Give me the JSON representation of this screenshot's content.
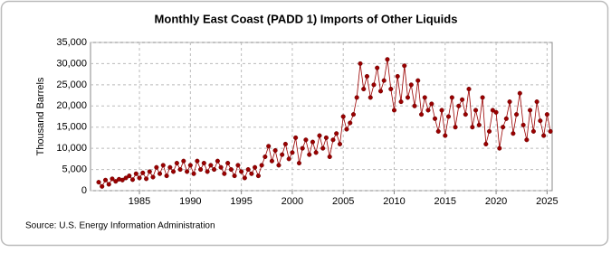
{
  "chart_data": {
    "type": "line",
    "title": "Monthly East Coast (PADD 1) Imports of Other Liquids",
    "y_label": "Thousand Barrels",
    "source": "Source: U.S. Energy Information Administration",
    "series": [
      {
        "name": "East Coast (PADD 1) Imports of Other Liquids",
        "color": "#9a0000",
        "x": [
          1981,
          1981.33,
          1981.67,
          1982,
          1982.33,
          1982.67,
          1983,
          1983.33,
          1983.67,
          1984,
          1984.33,
          1984.67,
          1985,
          1985.33,
          1985.67,
          1986,
          1986.33,
          1986.67,
          1987,
          1987.33,
          1987.67,
          1988,
          1988.33,
          1988.67,
          1989,
          1989.33,
          1989.67,
          1990,
          1990.33,
          1990.67,
          1991,
          1991.33,
          1991.67,
          1992,
          1992.33,
          1992.67,
          1993,
          1993.33,
          1993.67,
          1994,
          1994.33,
          1994.67,
          1995,
          1995.33,
          1995.67,
          1996,
          1996.33,
          1996.67,
          1997,
          1997.33,
          1997.67,
          1998,
          1998.33,
          1998.67,
          1999,
          1999.33,
          1999.67,
          2000,
          2000.33,
          2000.67,
          2001,
          2001.33,
          2001.67,
          2002,
          2002.33,
          2002.67,
          2003,
          2003.33,
          2003.67,
          2004,
          2004.33,
          2004.67,
          2005,
          2005.33,
          2005.67,
          2006,
          2006.33,
          2006.67,
          2007,
          2007.33,
          2007.67,
          2008,
          2008.33,
          2008.67,
          2009,
          2009.33,
          2009.67,
          2010,
          2010.33,
          2010.67,
          2011,
          2011.33,
          2011.67,
          2012,
          2012.33,
          2012.67,
          2013,
          2013.33,
          2013.67,
          2014,
          2014.33,
          2014.67,
          2015,
          2015.33,
          2015.67,
          2016,
          2016.33,
          2016.67,
          2017,
          2017.33,
          2017.67,
          2018,
          2018.33,
          2018.67,
          2019,
          2019.33,
          2019.67,
          2020,
          2020.33,
          2020.67,
          2021,
          2021.33,
          2021.67,
          2022,
          2022.33,
          2022.67,
          2023,
          2023.33,
          2023.67,
          2024,
          2024.33,
          2024.67,
          2025,
          2025.33
        ],
        "values": [
          2000,
          1000,
          2500,
          1500,
          2800,
          2200,
          2700,
          2500,
          3000,
          3500,
          2600,
          4000,
          3000,
          4200,
          2800,
          4500,
          3200,
          5500,
          4000,
          6000,
          3500,
          5500,
          4500,
          6500,
          5000,
          7000,
          4500,
          6000,
          4000,
          7000,
          5000,
          6500,
          4500,
          6000,
          5000,
          7000,
          5500,
          4000,
          6500,
          5000,
          3500,
          6000,
          4500,
          3000,
          5000,
          4000,
          5500,
          3500,
          6000,
          8000,
          10500,
          7000,
          9500,
          6000,
          8500,
          11000,
          7500,
          9000,
          12500,
          6500,
          10000,
          12000,
          8500,
          11500,
          9000,
          13000,
          10000,
          12500,
          8000,
          12000,
          13500,
          11000,
          17500,
          14500,
          16000,
          18000,
          22000,
          30000,
          24000,
          27000,
          22000,
          25000,
          29000,
          23500,
          26000,
          31000,
          24000,
          19000,
          27000,
          21000,
          29500,
          22000,
          25000,
          20000,
          26000,
          18000,
          22000,
          19000,
          20500,
          17000,
          14000,
          19000,
          13000,
          17500,
          22000,
          15000,
          20000,
          21500,
          18000,
          24000,
          15000,
          19000,
          15500,
          22000,
          11000,
          14000,
          19000,
          18500,
          10000,
          15000,
          17000,
          21000,
          13500,
          18000,
          23000,
          15500,
          12000,
          19000,
          14000,
          21000,
          16500,
          13000,
          18000,
          14000
        ]
      }
    ],
    "xlim": [
      1980.2,
      2025.5
    ],
    "xticks": [
      1985,
      1990,
      1995,
      2000,
      2005,
      2010,
      2015,
      2020,
      2025
    ],
    "ylim": [
      0,
      35000
    ],
    "yticks": [
      0,
      {
        "value": 5000,
        "label": "5,000"
      },
      {
        "value": 10000,
        "label": "10,000"
      },
      {
        "value": 15000,
        "label": "15,000"
      },
      {
        "value": 20000,
        "label": "20,000"
      },
      {
        "value": 25000,
        "label": "25,000"
      },
      {
        "value": 30000,
        "label": "30,000"
      },
      {
        "value": 35000,
        "label": "35,000"
      }
    ],
    "grid": true
  }
}
